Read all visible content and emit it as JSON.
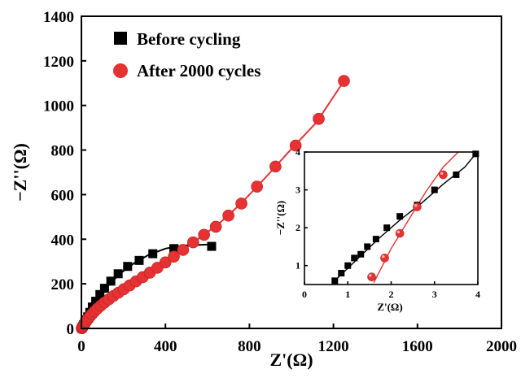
{
  "chart_data": [
    {
      "type": "line",
      "xlabel": "Z'(Ω)",
      "ylabel": "−Z''(Ω)",
      "xlim": [
        0,
        2000
      ],
      "ylim": [
        0,
        1400
      ],
      "xticks": [
        0,
        400,
        800,
        1200,
        1600,
        2000
      ],
      "yticks": [
        0,
        200,
        400,
        600,
        800,
        1000,
        1200,
        1400
      ],
      "legend_position": "top-left",
      "grid": false,
      "series": [
        {
          "name": "Before cycling",
          "marker": "square",
          "color": "#000000",
          "points": [
            [
              1,
              1
            ],
            [
              3,
              4
            ],
            [
              6,
              9
            ],
            [
              10,
              16
            ],
            [
              16,
              26
            ],
            [
              23,
              38
            ],
            [
              30,
              52
            ],
            [
              40,
              72
            ],
            [
              52,
              96
            ],
            [
              68,
              122
            ],
            [
              88,
              152
            ],
            [
              110,
              180
            ],
            [
              140,
              212
            ],
            [
              175,
              245
            ],
            [
              220,
              278
            ],
            [
              275,
              305
            ],
            [
              340,
              335
            ],
            [
              440,
              358
            ],
            [
              620,
              368
            ]
          ],
          "fit": [
            [
              1,
              1
            ],
            [
              10,
              18
            ],
            [
              25,
              45
            ],
            [
              45,
              80
            ],
            [
              70,
              118
            ],
            [
              100,
              160
            ],
            [
              140,
              205
            ],
            [
              190,
              250
            ],
            [
              250,
              292
            ],
            [
              320,
              330
            ],
            [
              400,
              358
            ],
            [
              480,
              372
            ],
            [
              600,
              376
            ],
            [
              630,
              376
            ]
          ]
        },
        {
          "name": "After 2000 cycles",
          "marker": "circle",
          "color": "#e63232",
          "points": [
            [
              2,
              1
            ],
            [
              3,
              2
            ],
            [
              4,
              4
            ],
            [
              6,
              7
            ],
            [
              9,
              12
            ],
            [
              13,
              18
            ],
            [
              18,
              25
            ],
            [
              24,
              33
            ],
            [
              31,
              42
            ],
            [
              40,
              53
            ],
            [
              50,
              64
            ],
            [
              62,
              76
            ],
            [
              76,
              89
            ],
            [
              92,
              102
            ],
            [
              110,
              116
            ],
            [
              130,
              130
            ],
            [
              152,
              145
            ],
            [
              176,
              160
            ],
            [
              202,
              176
            ],
            [
              230,
              193
            ],
            [
              260,
              211
            ],
            [
              292,
              230
            ],
            [
              326,
              250
            ],
            [
              362,
              272
            ],
            [
              400,
              296
            ],
            [
              440,
              322
            ],
            [
              484,
              352
            ],
            [
              532,
              386
            ],
            [
              584,
              420
            ],
            [
              640,
              456
            ],
            [
              700,
              506
            ],
            [
              762,
              560
            ],
            [
              836,
              636
            ],
            [
              924,
              726
            ],
            [
              1020,
              820
            ],
            [
              1130,
              940
            ],
            [
              1250,
              1110
            ]
          ],
          "fit": [
            [
              2,
              1
            ],
            [
              20,
              25
            ],
            [
              60,
              72
            ],
            [
              120,
              124
            ],
            [
              200,
              174
            ],
            [
              290,
              228
            ],
            [
              380,
              284
            ],
            [
              470,
              340
            ],
            [
              560,
              404
            ],
            [
              650,
              466
            ],
            [
              760,
              560
            ],
            [
              880,
              680
            ],
            [
              1000,
              805
            ],
            [
              1120,
              925
            ],
            [
              1250,
              1110
            ]
          ]
        }
      ]
    },
    {
      "type": "line",
      "inset": true,
      "xlabel": "Z'(Ω)",
      "ylabel": "−Z''(Ω)",
      "xlim": [
        0,
        4
      ],
      "ylim": [
        0.5,
        4
      ],
      "xticks": [
        0,
        1,
        2,
        3,
        4
      ],
      "yticks": [
        1,
        2,
        3,
        4
      ],
      "series": [
        {
          "name": "Before cycling",
          "marker": "square",
          "color": "#000000",
          "points": [
            [
              0.7,
              0.6
            ],
            [
              0.85,
              0.8
            ],
            [
              1.0,
              1.0
            ],
            [
              1.15,
              1.2
            ],
            [
              1.3,
              1.3
            ],
            [
              1.45,
              1.5
            ],
            [
              1.65,
              1.7
            ],
            [
              1.9,
              2.0
            ],
            [
              2.2,
              2.3
            ],
            [
              2.6,
              2.6
            ],
            [
              3.0,
              3.0
            ],
            [
              3.5,
              3.4
            ],
            [
              3.95,
              3.95
            ]
          ],
          "fit": [
            [
              0.7,
              0.6
            ],
            [
              1.2,
              1.15
            ],
            [
              1.7,
              1.7
            ],
            [
              2.2,
              2.2
            ],
            [
              2.7,
              2.65
            ],
            [
              3.2,
              3.15
            ],
            [
              3.7,
              3.6
            ],
            [
              3.95,
              3.95
            ]
          ]
        },
        {
          "name": "After 2000 cycles",
          "marker": "circle",
          "color": "#e63232",
          "points": [
            [
              1.55,
              0.7
            ],
            [
              1.85,
              1.2
            ],
            [
              2.2,
              1.85
            ],
            [
              2.6,
              2.55
            ],
            [
              3.2,
              3.4
            ]
          ],
          "fit": [
            [
              1.6,
              0.55
            ],
            [
              2.0,
              1.45
            ],
            [
              2.4,
              2.2
            ],
            [
              2.8,
              2.95
            ],
            [
              3.2,
              3.6
            ],
            [
              3.55,
              4.0
            ]
          ]
        }
      ]
    }
  ]
}
